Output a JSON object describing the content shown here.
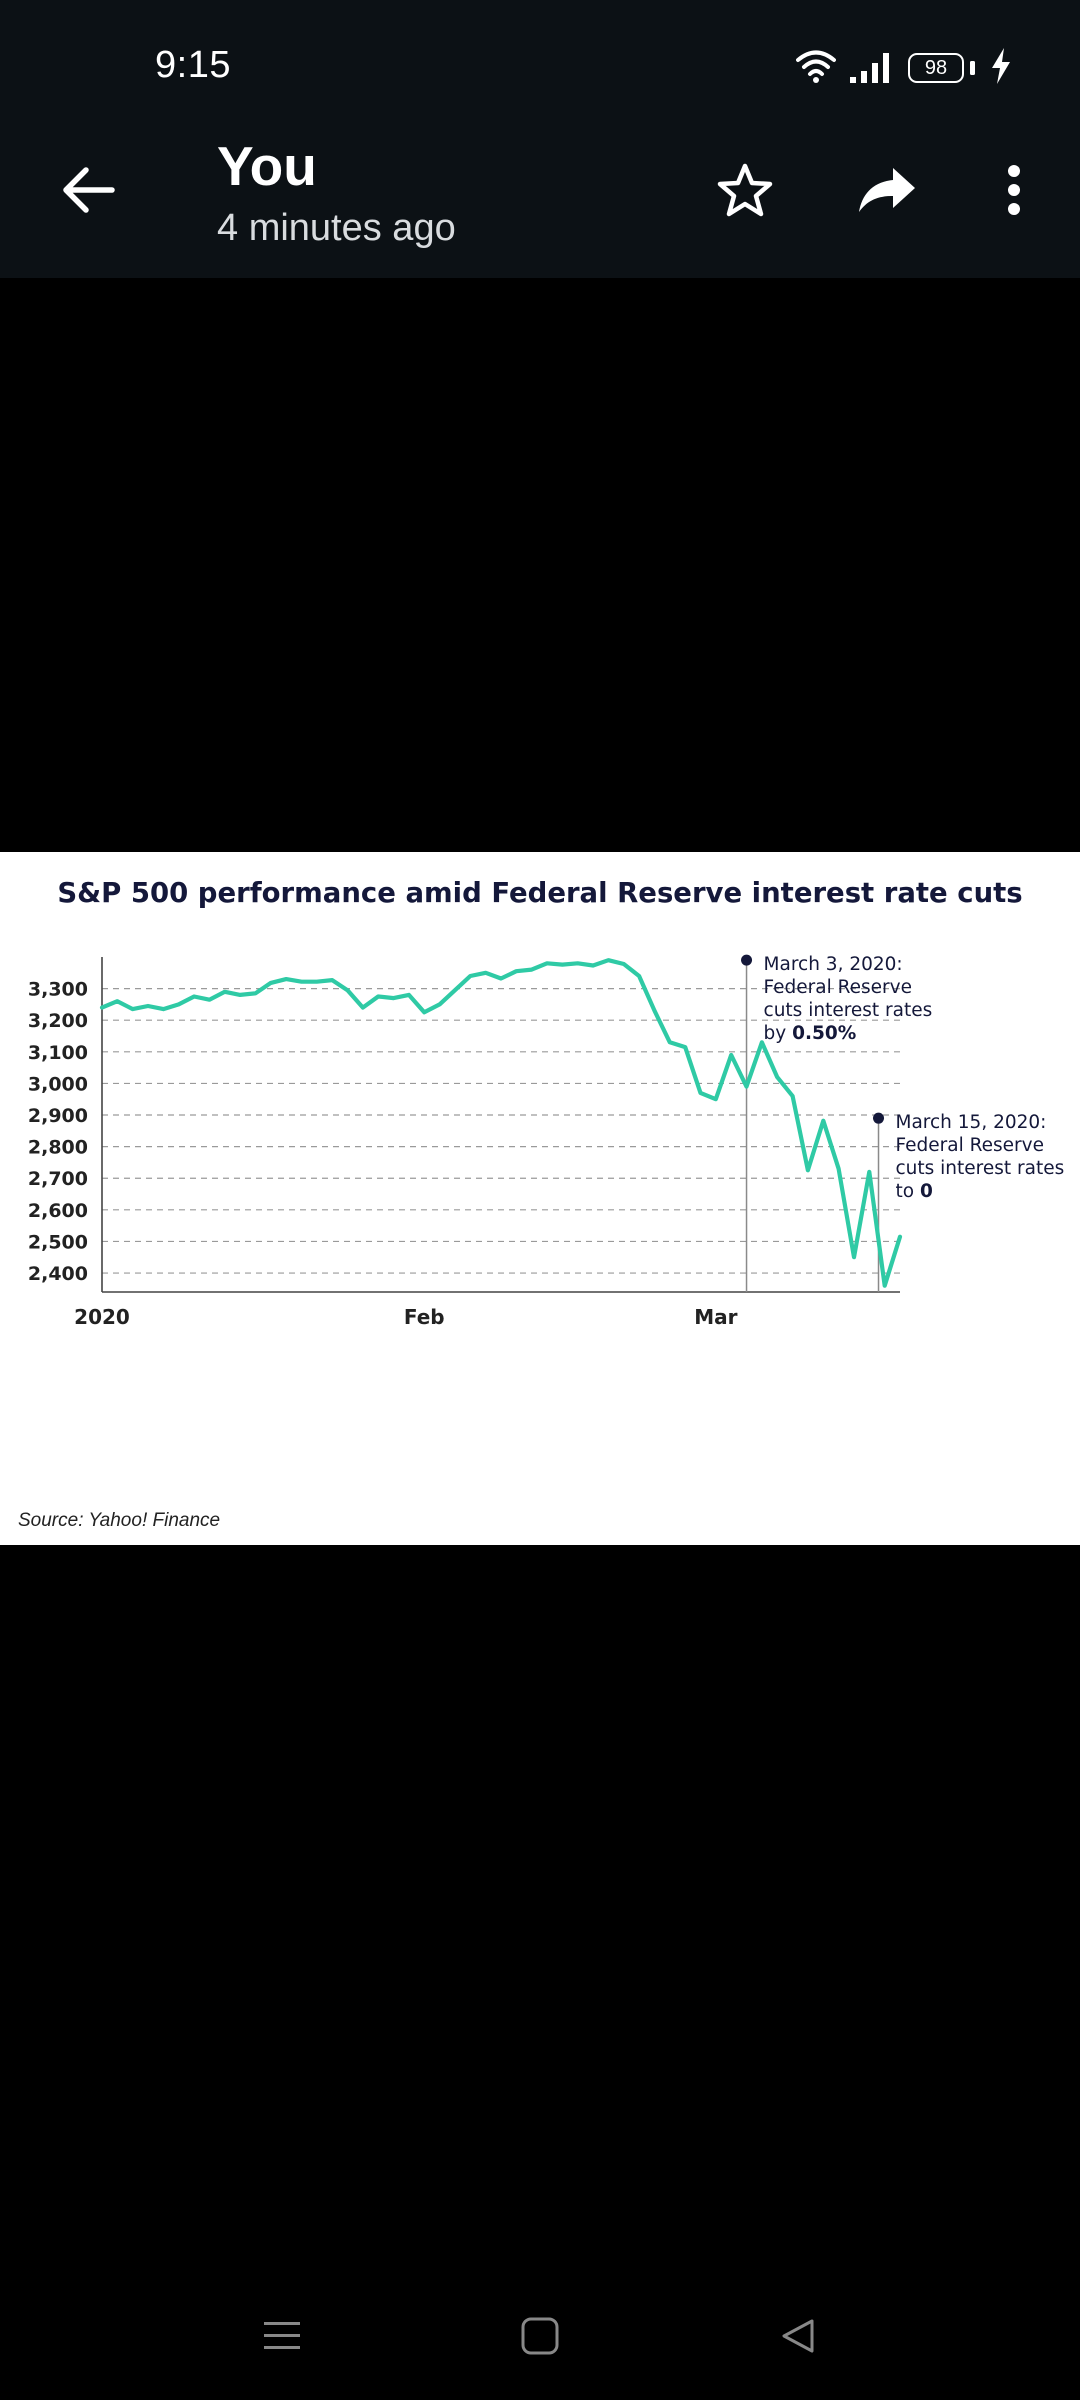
{
  "status_bar": {
    "time": "9:15",
    "battery": "98",
    "icons": [
      "wifi-icon",
      "signal-icon",
      "battery-icon",
      "charging-icon"
    ]
  },
  "app_bar": {
    "title": "You",
    "subtitle": "4 minutes ago",
    "icons": [
      "back-arrow-icon",
      "star-icon",
      "share-icon",
      "more-vert-icon"
    ]
  },
  "nav_bar": {
    "icons": [
      "menu-lines-icon",
      "home-square-icon",
      "back-triangle-icon"
    ]
  },
  "colors": {
    "line": "#2fcaa5",
    "title_text": "#14183a",
    "annotation_dot": "#14183a"
  },
  "chart_data": {
    "type": "line",
    "title": "S&P 500 performance amid Federal Reserve interest rate cuts",
    "xlabel": "",
    "ylabel": "",
    "ylim": [
      2340,
      3400
    ],
    "yticks": [
      2400,
      2500,
      2600,
      2700,
      2800,
      2900,
      3000,
      3100,
      3200,
      3300
    ],
    "ytick_labels": [
      "2,400",
      "2,500",
      "2,600",
      "2,700",
      "2,800",
      "2,900",
      "3,000",
      "3,100",
      "3,200",
      "3,300"
    ],
    "xlim": [
      0,
      52
    ],
    "xticks": [
      {
        "x": 0,
        "label": "2020"
      },
      {
        "x": 21,
        "label": "Feb"
      },
      {
        "x": 40,
        "label": "Mar"
      }
    ],
    "grid": "horizontal-dashed",
    "source": "Source: Yahoo! Finance",
    "series": [
      {
        "name": "S&P 500",
        "x": [
          0,
          1,
          2,
          3,
          4,
          5,
          6,
          7,
          8,
          9,
          10,
          11,
          12,
          13,
          14,
          15,
          16,
          17,
          18,
          19,
          20,
          21,
          22,
          23,
          24,
          25,
          26,
          27,
          28,
          29,
          30,
          31,
          32,
          33,
          34,
          35,
          36,
          37,
          38,
          39,
          40,
          41,
          42,
          43,
          44,
          45,
          46,
          47,
          48,
          49,
          50,
          51,
          52
        ],
        "values": [
          3240,
          3260,
          3235,
          3245,
          3235,
          3250,
          3275,
          3265,
          3290,
          3280,
          3285,
          3318,
          3330,
          3322,
          3322,
          3327,
          3295,
          3240,
          3275,
          3270,
          3280,
          3225,
          3250,
          3295,
          3340,
          3350,
          3332,
          3355,
          3360,
          3380,
          3376,
          3380,
          3373,
          3390,
          3378,
          3340,
          3230,
          3130,
          3115,
          2970,
          2950,
          3090,
          2990,
          3130,
          3020,
          2960,
          2725,
          2882,
          2730,
          2450,
          2720,
          2360,
          2515
        ]
      }
    ],
    "annotations": [
      {
        "x": 42,
        "y": 3390,
        "lines": [
          "March 3, 2020:",
          "Federal Reserve",
          "cuts interest rates"
        ],
        "last_prefix": "by ",
        "last_bold": "0.50%"
      },
      {
        "x": 50.6,
        "y": 2890,
        "lines": [
          "March 15, 2020:",
          "Federal Reserve",
          "cuts interest rates"
        ],
        "last_prefix": "to ",
        "last_bold": "0"
      }
    ]
  }
}
